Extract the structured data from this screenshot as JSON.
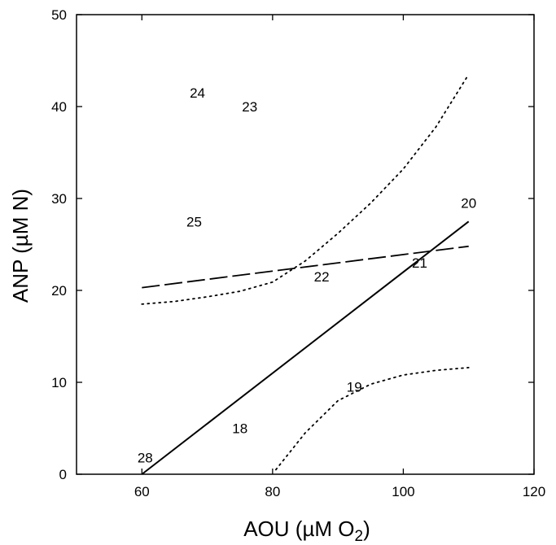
{
  "chart_data": {
    "type": "scatter",
    "xlabel": "AOU (µM O",
    "xlabel_subscript": "2",
    "xlabel_close": ")",
    "ylabel": "ANP (µM N)",
    "xlim": [
      50,
      120
    ],
    "ylim": [
      0,
      50
    ],
    "x_ticks": [
      60,
      80,
      100,
      120
    ],
    "y_ticks": [
      0,
      10,
      20,
      30,
      40,
      50
    ],
    "points": [
      {
        "label": "18",
        "x": 75,
        "y": 5
      },
      {
        "label": "19",
        "x": 92.5,
        "y": 9.5
      },
      {
        "label": "20",
        "x": 110,
        "y": 29.5
      },
      {
        "label": "21",
        "x": 102.5,
        "y": 23
      },
      {
        "label": "22",
        "x": 87.5,
        "y": 21.5
      },
      {
        "label": "23",
        "x": 76.5,
        "y": 40
      },
      {
        "label": "24",
        "x": 68.5,
        "y": 41.5
      },
      {
        "label": "25",
        "x": 68,
        "y": 27.5
      },
      {
        "label": "28",
        "x": 60.5,
        "y": 1.8
      }
    ],
    "series": [
      {
        "style": "solid",
        "x": [
          60,
          110
        ],
        "y": [
          0,
          27.5
        ]
      },
      {
        "style": "dashed",
        "x": [
          60,
          110
        ],
        "y": [
          20.3,
          24.8
        ]
      },
      {
        "style": "dotted",
        "x": [
          60,
          65,
          70,
          75,
          80,
          85,
          90,
          95,
          100,
          105,
          110
        ],
        "y": [
          18.5,
          18.8,
          19.3,
          19.9,
          20.9,
          23.2,
          26.2,
          29.5,
          33.2,
          37.8,
          43.5
        ]
      },
      {
        "style": "dotted",
        "x": [
          80.5,
          85,
          90,
          95,
          100,
          105,
          110
        ],
        "y": [
          0.5,
          4.5,
          8.0,
          9.8,
          10.8,
          11.3,
          11.6
        ]
      }
    ],
    "grid": false,
    "legend": "none"
  }
}
